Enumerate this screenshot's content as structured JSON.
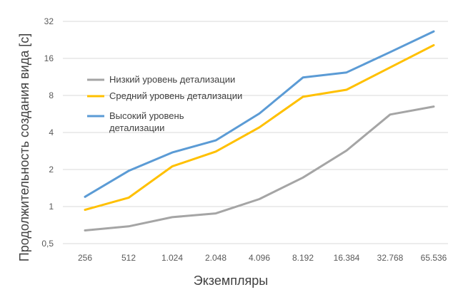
{
  "chart_data": {
    "type": "line",
    "title": "",
    "xlabel": "Экземпляры",
    "ylabel": "Продолжительность создания вида [с]",
    "categories": [
      "256",
      "512",
      "1.024",
      "2.048",
      "4.096",
      "8.192",
      "16.384",
      "32.768",
      "65.536"
    ],
    "y_scale": "log2",
    "ylim": [
      0.5,
      32
    ],
    "y_ticks": [
      0.5,
      1,
      2,
      4,
      8,
      16,
      32
    ],
    "y_tick_labels": [
      "0,5",
      "1",
      "2",
      "4",
      "8",
      "16",
      "32"
    ],
    "grid": "horizontal",
    "legend_position": "inside-left",
    "series": [
      {
        "name": "Низкий уровень детализации",
        "color": "#a5a5a5",
        "values": [
          0.64,
          0.69,
          0.82,
          0.88,
          1.15,
          1.72,
          2.85,
          5.6,
          6.5
        ]
      },
      {
        "name": "Средний уровень детализации",
        "color": "#ffc000",
        "values": [
          0.94,
          1.18,
          2.12,
          2.8,
          4.4,
          7.8,
          8.9,
          13.5,
          20.5
        ]
      },
      {
        "name": "Высокий уровень детализации",
        "color": "#5b9bd5",
        "values": [
          1.2,
          1.95,
          2.75,
          3.45,
          5.7,
          11.2,
          12.3,
          18.0,
          26.5
        ]
      }
    ]
  }
}
